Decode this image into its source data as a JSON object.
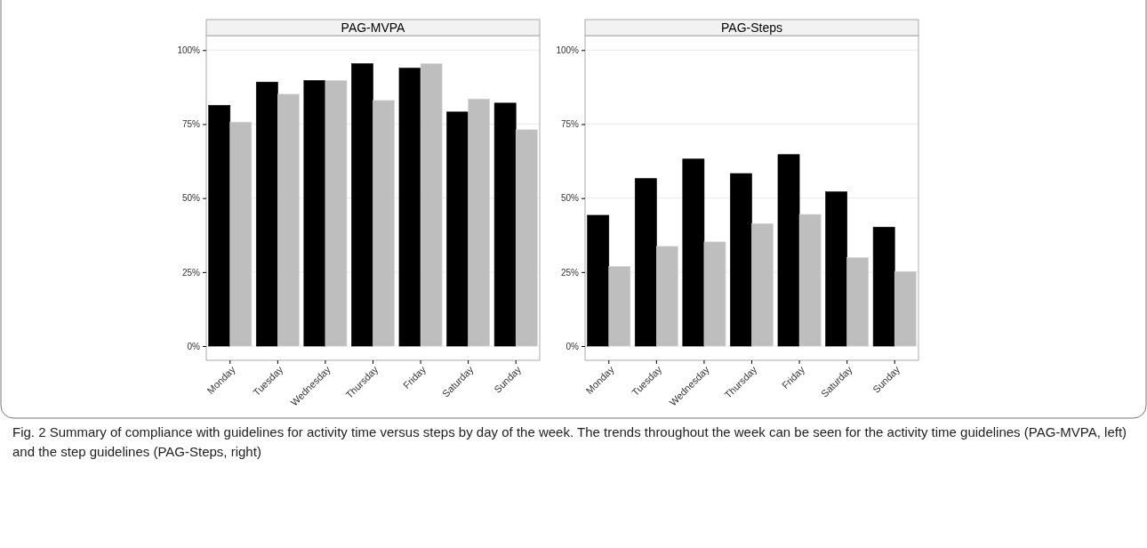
{
  "chart_data": [
    {
      "type": "bar",
      "title": "PAG-MVPA",
      "categories": [
        "Monday",
        "Tuesday",
        "Wednesday",
        "Thursday",
        "Friday",
        "Saturday",
        "Sunday"
      ],
      "series": [
        {
          "color": "#000000",
          "values": [
            81.3,
            89.2,
            89.7,
            95.4,
            93.9,
            79.1,
            82.1
          ]
        },
        {
          "color": "#bebebe",
          "values": [
            75.7,
            85.1,
            89.7,
            83.0,
            95.4,
            83.5,
            73.1
          ]
        }
      ],
      "ylim": [
        -4.8,
        104.9
      ],
      "yticks": [
        {
          "value": 0,
          "label": "0%"
        },
        {
          "value": 25,
          "label": "25%"
        },
        {
          "value": 50,
          "label": "50%"
        },
        {
          "value": 75,
          "label": "75%"
        },
        {
          "value": 100,
          "label": "100%"
        }
      ],
      "grid": "y",
      "annotations": [
        "Fig. 2 Summary of compliance with guidelines for activity time versus steps by day of the week. The trends throughout the week can be seen for the activity time guidelines (PAG-MVPA, left) and the step guidelines (PAG-Steps, right)"
      ]
    },
    {
      "type": "bar",
      "title": "PAG-Steps",
      "categories": [
        "Monday",
        "Tuesday",
        "Wednesday",
        "Thursday",
        "Friday",
        "Saturday",
        "Sunday"
      ],
      "series": [
        {
          "color": "#000000",
          "values": [
            44.2,
            56.6,
            63.2,
            58.3,
            64.7,
            52.1,
            40.2
          ]
        },
        {
          "color": "#bebebe",
          "values": [
            26.9,
            33.7,
            35.2,
            41.4,
            44.5,
            29.9,
            25.2
          ]
        }
      ],
      "ylim": [
        -4.8,
        104.9
      ],
      "yticks": [
        {
          "value": 0,
          "label": "0%"
        },
        {
          "value": 25,
          "label": "25%"
        },
        {
          "value": 50,
          "label": "50%"
        },
        {
          "value": 75,
          "label": "75%"
        },
        {
          "value": 100,
          "label": "100%"
        }
      ],
      "grid": "y"
    }
  ]
}
